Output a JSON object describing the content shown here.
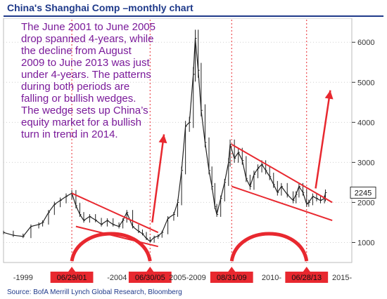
{
  "title": "China's Shanghai Comp –monthly chart",
  "annotation_lines": [
    "The June 2001 to June 2005",
    "drop spanned 4-years, while",
    "the decline from August",
    "2009 to June 2013 was just",
    "under 4-years. The patterns",
    "during both periods are",
    "falling or bullish wedges.",
    "The wedge sets up China’s",
    "equity market for a bullish",
    "turn in trend in 2014."
  ],
  "source": "Source: BofA Merrill Lynch Global Research, Bloomberg",
  "colors": {
    "title": "#1f3a8a",
    "annotation": "#7a1a9a",
    "price": "#222222",
    "trendlines": "#e8282f",
    "date_label_bg": "#e8282f",
    "last_value_bg": "#ffffff",
    "grid": "#d0d0d0"
  },
  "chart_data": {
    "type": "line",
    "title": "China's Shanghai Comp –monthly chart",
    "series": [
      {
        "values": [
          [
            1998.0,
            1250
          ],
          [
            1998.5,
            1180
          ],
          [
            1999.0,
            1150
          ],
          [
            1999.4,
            1400
          ],
          [
            1999.8,
            1450
          ],
          [
            2000.0,
            1500
          ],
          [
            2000.3,
            1750
          ],
          [
            2000.6,
            1950
          ],
          [
            2000.9,
            2050
          ],
          [
            2001.2,
            2150
          ],
          [
            2001.49,
            2230
          ],
          [
            2001.7,
            1920
          ],
          [
            2001.9,
            1700
          ],
          [
            2002.1,
            1550
          ],
          [
            2002.4,
            1650
          ],
          [
            2002.7,
            1560
          ],
          [
            2003.0,
            1450
          ],
          [
            2003.3,
            1550
          ],
          [
            2003.6,
            1450
          ],
          [
            2003.9,
            1400
          ],
          [
            2004.1,
            1550
          ],
          [
            2004.3,
            1750
          ],
          [
            2004.6,
            1400
          ],
          [
            2004.9,
            1280
          ],
          [
            2005.1,
            1220
          ],
          [
            2005.3,
            1100
          ],
          [
            2005.49,
            1030
          ],
          [
            2005.7,
            1130
          ],
          [
            2005.9,
            1160
          ],
          [
            2006.1,
            1250
          ],
          [
            2006.4,
            1600
          ],
          [
            2006.7,
            1700
          ],
          [
            2006.9,
            2000
          ],
          [
            2007.1,
            2800
          ],
          [
            2007.3,
            3900
          ],
          [
            2007.5,
            4000
          ],
          [
            2007.7,
            5200
          ],
          [
            2007.8,
            6100
          ],
          [
            2007.95,
            5300
          ],
          [
            2008.1,
            4300
          ],
          [
            2008.3,
            3500
          ],
          [
            2008.5,
            2800
          ],
          [
            2008.65,
            2400
          ],
          [
            2008.8,
            1900
          ],
          [
            2008.9,
            1700
          ],
          [
            2009.1,
            2100
          ],
          [
            2009.3,
            2500
          ],
          [
            2009.5,
            3000
          ],
          [
            2009.58,
            3450
          ],
          [
            2009.8,
            3100
          ],
          [
            2010.0,
            3250
          ],
          [
            2010.2,
            3050
          ],
          [
            2010.4,
            2600
          ],
          [
            2010.6,
            2400
          ],
          [
            2010.8,
            2700
          ],
          [
            2011.0,
            2850
          ],
          [
            2011.2,
            2950
          ],
          [
            2011.4,
            2800
          ],
          [
            2011.6,
            2650
          ],
          [
            2011.8,
            2450
          ],
          [
            2012.0,
            2250
          ],
          [
            2012.2,
            2400
          ],
          [
            2012.5,
            2200
          ],
          [
            2012.8,
            2050
          ],
          [
            2012.95,
            2200
          ],
          [
            2013.1,
            2400
          ],
          [
            2013.3,
            2250
          ],
          [
            2013.49,
            1960
          ],
          [
            2013.6,
            2000
          ],
          [
            2013.8,
            2150
          ],
          [
            2014.0,
            2100
          ],
          [
            2014.2,
            2050
          ],
          [
            2014.4,
            2100
          ],
          [
            2014.45,
            2245
          ]
        ]
      }
    ],
    "x_range": [
      1998.0,
      2015.8
    ],
    "y_range": [
      500,
      6600
    ],
    "y_ticks": [
      1000,
      2000,
      3000,
      4000,
      5000,
      6000
    ],
    "y_axis_position": "right",
    "x_tick_labels": [
      {
        "label": "-1999",
        "x": 1999.0
      },
      {
        "label": "06/29/01",
        "x": 2001.49,
        "highlight": true
      },
      {
        "label": "-2004",
        "x": 2003.8
      },
      {
        "label": "06/30/05",
        "x": 2005.49,
        "highlight": true
      },
      {
        "label": "2005-2009",
        "x": 2007.4
      },
      {
        "label": "08/31/09",
        "x": 2009.66,
        "highlight": true
      },
      {
        "label": "2010-",
        "x": 2011.7
      },
      {
        "label": "06/28/13",
        "x": 2013.49,
        "highlight": true
      },
      {
        "label": "2015-",
        "x": 2015.3
      }
    ],
    "last_value_label": "2245",
    "last_value": 2245,
    "trendlines": [
      {
        "from": [
          2001.49,
          2230
        ],
        "to": [
          2005.9,
          1250
        ]
      },
      {
        "from": [
          2001.7,
          1400
        ],
        "to": [
          2005.9,
          900
        ]
      },
      {
        "from": [
          2009.66,
          3450
        ],
        "to": [
          2014.8,
          2000
        ]
      },
      {
        "from": [
          2009.66,
          2400
        ],
        "to": [
          2014.8,
          1550
        ]
      }
    ],
    "arrows": [
      {
        "from": [
          2005.6,
          1500
        ],
        "to": [
          2006.2,
          3700
        ]
      },
      {
        "from": [
          2013.95,
          2350
        ],
        "to": [
          2014.7,
          4800
        ]
      }
    ],
    "arcs": [
      {
        "from_x": 2001.49,
        "to_x": 2005.49
      },
      {
        "from_x": 2009.66,
        "to_x": 2013.49
      }
    ],
    "vlines": [
      2001.49,
      2005.49,
      2009.66,
      2013.49
    ]
  }
}
